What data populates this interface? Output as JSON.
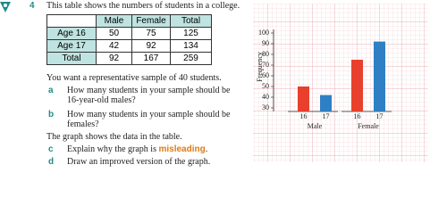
{
  "question": {
    "number": "4",
    "intro": "This table shows the numbers of students in a college."
  },
  "table": {
    "header": [
      "Male",
      "Female",
      "Total"
    ],
    "rows": [
      [
        "Age 16",
        50,
        75,
        125
      ],
      [
        "Age 17",
        42,
        92,
        134
      ],
      [
        "Total",
        92,
        167,
        259
      ]
    ]
  },
  "text": {
    "sample": "You want a representative sample of 40 students.",
    "parts": [
      {
        "label": "a",
        "text": "How many students in your sample should be 16-year-old males?"
      },
      {
        "label": "b",
        "text": "How many students in your sample should be females?"
      }
    ],
    "graph_intro": "The graph shows the data in the table.",
    "parts2": [
      {
        "label": "c",
        "text": "Explain why the graph is",
        "highlight": "misleading",
        "end": "."
      },
      {
        "label": "d",
        "text": "Draw an improved version of the graph."
      }
    ]
  },
  "graph": {
    "y_label": "Frequency",
    "ylim": [
      30,
      100
    ],
    "yticks": [
      30,
      40,
      50,
      60,
      70,
      80,
      90,
      100
    ],
    "colors": [
      "#e8402c",
      "#2f7fc4"
    ],
    "groups": [
      {
        "name": "Male",
        "categories": [
          "16",
          "17"
        ],
        "values": [
          50,
          42
        ]
      },
      {
        "name": "Female",
        "categories": [
          "16",
          "17"
        ],
        "values": [
          75,
          92
        ]
      }
    ]
  }
}
